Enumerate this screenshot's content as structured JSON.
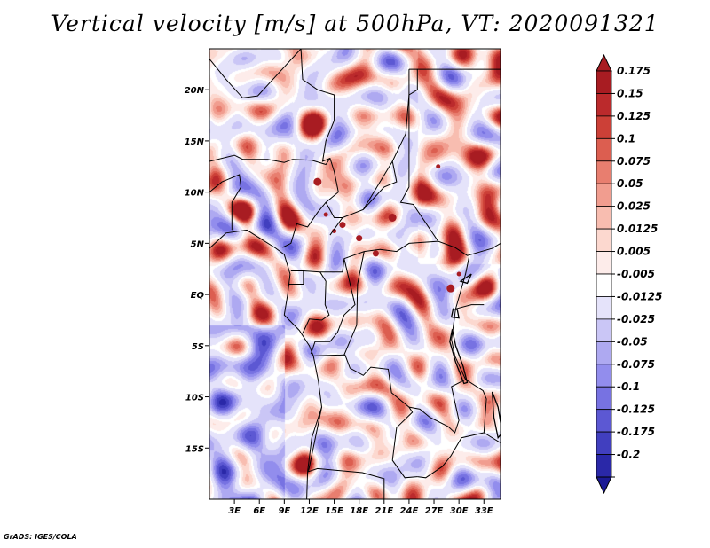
{
  "title": "Vertical velocity [m/s] at 500hPa, VT: 2020091321",
  "credit": "GrADS: IGES/COLA",
  "chart_data": {
    "type": "heatmap",
    "title": "Vertical velocity [m/s] at 500hPa, VT: 2020091321",
    "variable": "Vertical velocity",
    "units": "m/s",
    "level": "500hPa",
    "valid_time": "2020091321",
    "lon_range": [
      0,
      35
    ],
    "lat_range": [
      -20,
      24
    ],
    "x_ticks": [
      {
        "value": 3,
        "label": "3E"
      },
      {
        "value": 6,
        "label": "6E"
      },
      {
        "value": 9,
        "label": "9E"
      },
      {
        "value": 12,
        "label": "12E"
      },
      {
        "value": 15,
        "label": "15E"
      },
      {
        "value": 18,
        "label": "18E"
      },
      {
        "value": 21,
        "label": "21E"
      },
      {
        "value": 24,
        "label": "24E"
      },
      {
        "value": 27,
        "label": "27E"
      },
      {
        "value": 30,
        "label": "30E"
      },
      {
        "value": 33,
        "label": "33E"
      }
    ],
    "y_ticks": [
      {
        "value": 20,
        "label": "20N"
      },
      {
        "value": 15,
        "label": "15N"
      },
      {
        "value": 10,
        "label": "10N"
      },
      {
        "value": 5,
        "label": "5N"
      },
      {
        "value": 0,
        "label": "EQ"
      },
      {
        "value": -5,
        "label": "5S"
      },
      {
        "value": -10,
        "label": "10S"
      },
      {
        "value": -15,
        "label": "15S"
      }
    ],
    "colorbar": {
      "levels": [
        {
          "label": "0.175",
          "color": "#a81c22"
        },
        {
          "label": "0.15",
          "color": "#bb2a2c"
        },
        {
          "label": "0.125",
          "color": "#cc4037"
        },
        {
          "label": "0.1",
          "color": "#dc5e50"
        },
        {
          "label": "0.075",
          "color": "#e87e6f"
        },
        {
          "label": "0.05",
          "color": "#f19d8f"
        },
        {
          "label": "0.025",
          "color": "#f8bdb0"
        },
        {
          "label": "0.0125",
          "color": "#fcd8cf"
        },
        {
          "label": "0.005",
          "color": "#fdecea"
        },
        {
          "label": "-0.005",
          "color": "#ffffff"
        },
        {
          "label": "-0.0125",
          "color": "#e5e3fa"
        },
        {
          "label": "-0.025",
          "color": "#cac6f6"
        },
        {
          "label": "-0.05",
          "color": "#aea9f1"
        },
        {
          "label": "-0.075",
          "color": "#928ded"
        },
        {
          "label": "-0.1",
          "color": "#7772e2"
        },
        {
          "label": "-0.125",
          "color": "#5c58d3"
        },
        {
          "label": "-0.175",
          "color": "#413fbf"
        },
        {
          "label": "-0.2",
          "color": "#2a28a8"
        }
      ],
      "bottom_color": "#1c1a95"
    }
  }
}
